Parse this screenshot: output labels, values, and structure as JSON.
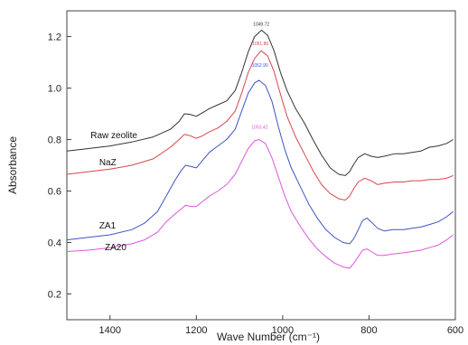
{
  "chart_data": {
    "type": "line",
    "title": "",
    "xlabel": "Wave Number (cm⁻¹)",
    "ylabel": "Absorbance",
    "xlim": [
      1500,
      600
    ],
    "ylim": [
      0.1,
      1.3
    ],
    "x_reversed": true,
    "grid": false,
    "xticks": [
      1400,
      1200,
      1000,
      800,
      600
    ],
    "xtick_labels": [
      "1400",
      "1200",
      "1000",
      "800",
      "600"
    ],
    "yticks": [
      0.2,
      0.4,
      0.6,
      0.8,
      1.0,
      1.2
    ],
    "ytick_labels": [
      "0.2",
      "0.4",
      "0.6",
      "0.8",
      "1.0",
      "1.2"
    ],
    "series": [
      {
        "name": "Raw zeolite",
        "color": "#333333",
        "label_at": [
          1445,
          0.805
        ],
        "peak": {
          "label": "1049.72",
          "x": 1049.72,
          "y": 1.235
        },
        "points": [
          [
            1500,
            0.755
          ],
          [
            1450,
            0.765
          ],
          [
            1400,
            0.775
          ],
          [
            1350,
            0.79
          ],
          [
            1300,
            0.81
          ],
          [
            1260,
            0.84
          ],
          [
            1240,
            0.87
          ],
          [
            1228,
            0.9
          ],
          [
            1215,
            0.898
          ],
          [
            1200,
            0.89
          ],
          [
            1185,
            0.905
          ],
          [
            1170,
            0.92
          ],
          [
            1150,
            0.935
          ],
          [
            1130,
            0.95
          ],
          [
            1110,
            0.99
          ],
          [
            1095,
            1.06
          ],
          [
            1080,
            1.14
          ],
          [
            1065,
            1.2
          ],
          [
            1049,
            1.225
          ],
          [
            1035,
            1.205
          ],
          [
            1020,
            1.145
          ],
          [
            1005,
            1.06
          ],
          [
            990,
            0.99
          ],
          [
            970,
            0.92
          ],
          [
            950,
            0.865
          ],
          [
            930,
            0.8
          ],
          [
            910,
            0.74
          ],
          [
            890,
            0.69
          ],
          [
            870,
            0.665
          ],
          [
            855,
            0.66
          ],
          [
            845,
            0.675
          ],
          [
            835,
            0.705
          ],
          [
            825,
            0.73
          ],
          [
            810,
            0.745
          ],
          [
            795,
            0.735
          ],
          [
            780,
            0.73
          ],
          [
            765,
            0.735
          ],
          [
            740,
            0.745
          ],
          [
            720,
            0.745
          ],
          [
            700,
            0.75
          ],
          [
            680,
            0.755
          ],
          [
            660,
            0.77
          ],
          [
            640,
            0.775
          ],
          [
            620,
            0.785
          ],
          [
            605,
            0.8
          ]
        ]
      },
      {
        "name": "NaZ",
        "color": "#d9464c",
        "label_at": [
          1425,
          0.7
        ],
        "peak": {
          "label": "1051.86",
          "x": 1051.86,
          "y": 1.16
        },
        "points": [
          [
            1500,
            0.665
          ],
          [
            1450,
            0.675
          ],
          [
            1400,
            0.685
          ],
          [
            1350,
            0.7
          ],
          [
            1300,
            0.725
          ],
          [
            1260,
            0.77
          ],
          [
            1240,
            0.8
          ],
          [
            1228,
            0.82
          ],
          [
            1215,
            0.815
          ],
          [
            1200,
            0.805
          ],
          [
            1185,
            0.815
          ],
          [
            1170,
            0.83
          ],
          [
            1150,
            0.845
          ],
          [
            1130,
            0.87
          ],
          [
            1110,
            0.91
          ],
          [
            1095,
            0.98
          ],
          [
            1080,
            1.06
          ],
          [
            1065,
            1.115
          ],
          [
            1050,
            1.145
          ],
          [
            1035,
            1.125
          ],
          [
            1020,
            1.065
          ],
          [
            1005,
            0.975
          ],
          [
            990,
            0.89
          ],
          [
            970,
            0.81
          ],
          [
            950,
            0.745
          ],
          [
            930,
            0.68
          ],
          [
            910,
            0.625
          ],
          [
            890,
            0.59
          ],
          [
            870,
            0.57
          ],
          [
            855,
            0.565
          ],
          [
            845,
            0.58
          ],
          [
            835,
            0.61
          ],
          [
            825,
            0.635
          ],
          [
            810,
            0.65
          ],
          [
            795,
            0.64
          ],
          [
            780,
            0.625
          ],
          [
            765,
            0.63
          ],
          [
            740,
            0.635
          ],
          [
            720,
            0.635
          ],
          [
            700,
            0.64
          ],
          [
            680,
            0.64
          ],
          [
            660,
            0.645
          ],
          [
            640,
            0.645
          ],
          [
            620,
            0.65
          ],
          [
            605,
            0.66
          ]
        ]
      },
      {
        "name": "ZA1",
        "color": "#3f53c4",
        "label_at": [
          1425,
          0.455
        ],
        "peak": {
          "label": "1052.90",
          "x": 1052.9,
          "y": 1.075
        },
        "points": [
          [
            1500,
            0.41
          ],
          [
            1450,
            0.42
          ],
          [
            1400,
            0.43
          ],
          [
            1350,
            0.45
          ],
          [
            1320,
            0.475
          ],
          [
            1290,
            0.52
          ],
          [
            1270,
            0.58
          ],
          [
            1250,
            0.64
          ],
          [
            1235,
            0.68
          ],
          [
            1225,
            0.7
          ],
          [
            1212,
            0.695
          ],
          [
            1200,
            0.69
          ],
          [
            1185,
            0.72
          ],
          [
            1170,
            0.75
          ],
          [
            1150,
            0.775
          ],
          [
            1130,
            0.8
          ],
          [
            1110,
            0.84
          ],
          [
            1095,
            0.91
          ],
          [
            1080,
            0.98
          ],
          [
            1065,
            1.02
          ],
          [
            1055,
            1.03
          ],
          [
            1040,
            1.01
          ],
          [
            1025,
            0.95
          ],
          [
            1010,
            0.85
          ],
          [
            995,
            0.76
          ],
          [
            980,
            0.69
          ],
          [
            960,
            0.62
          ],
          [
            940,
            0.55
          ],
          [
            920,
            0.495
          ],
          [
            900,
            0.45
          ],
          [
            880,
            0.42
          ],
          [
            860,
            0.4
          ],
          [
            845,
            0.395
          ],
          [
            835,
            0.415
          ],
          [
            825,
            0.45
          ],
          [
            815,
            0.485
          ],
          [
            805,
            0.495
          ],
          [
            795,
            0.48
          ],
          [
            780,
            0.455
          ],
          [
            765,
            0.445
          ],
          [
            745,
            0.45
          ],
          [
            720,
            0.45
          ],
          [
            700,
            0.455
          ],
          [
            680,
            0.46
          ],
          [
            660,
            0.47
          ],
          [
            640,
            0.48
          ],
          [
            620,
            0.5
          ],
          [
            605,
            0.52
          ]
        ]
      },
      {
        "name": "ZA20",
        "color": "#de55de",
        "label_at": [
          1412,
          0.37
        ],
        "peak": {
          "label": "1053.42",
          "x": 1053.42,
          "y": 0.835
        },
        "points": [
          [
            1500,
            0.365
          ],
          [
            1450,
            0.37
          ],
          [
            1400,
            0.38
          ],
          [
            1350,
            0.395
          ],
          [
            1320,
            0.41
          ],
          [
            1290,
            0.44
          ],
          [
            1270,
            0.48
          ],
          [
            1250,
            0.51
          ],
          [
            1235,
            0.53
          ],
          [
            1225,
            0.545
          ],
          [
            1212,
            0.54
          ],
          [
            1200,
            0.54
          ],
          [
            1185,
            0.56
          ],
          [
            1170,
            0.58
          ],
          [
            1150,
            0.6
          ],
          [
            1130,
            0.625
          ],
          [
            1110,
            0.665
          ],
          [
            1095,
            0.715
          ],
          [
            1080,
            0.765
          ],
          [
            1065,
            0.795
          ],
          [
            1055,
            0.8
          ],
          [
            1040,
            0.785
          ],
          [
            1025,
            0.73
          ],
          [
            1010,
            0.655
          ],
          [
            995,
            0.58
          ],
          [
            980,
            0.52
          ],
          [
            960,
            0.465
          ],
          [
            940,
            0.415
          ],
          [
            920,
            0.375
          ],
          [
            900,
            0.345
          ],
          [
            880,
            0.32
          ],
          [
            860,
            0.305
          ],
          [
            845,
            0.3
          ],
          [
            835,
            0.32
          ],
          [
            825,
            0.345
          ],
          [
            815,
            0.37
          ],
          [
            805,
            0.375
          ],
          [
            795,
            0.365
          ],
          [
            780,
            0.35
          ],
          [
            765,
            0.35
          ],
          [
            745,
            0.355
          ],
          [
            720,
            0.36
          ],
          [
            700,
            0.365
          ],
          [
            680,
            0.37
          ],
          [
            660,
            0.38
          ],
          [
            640,
            0.39
          ],
          [
            620,
            0.41
          ],
          [
            605,
            0.43
          ]
        ]
      }
    ]
  }
}
